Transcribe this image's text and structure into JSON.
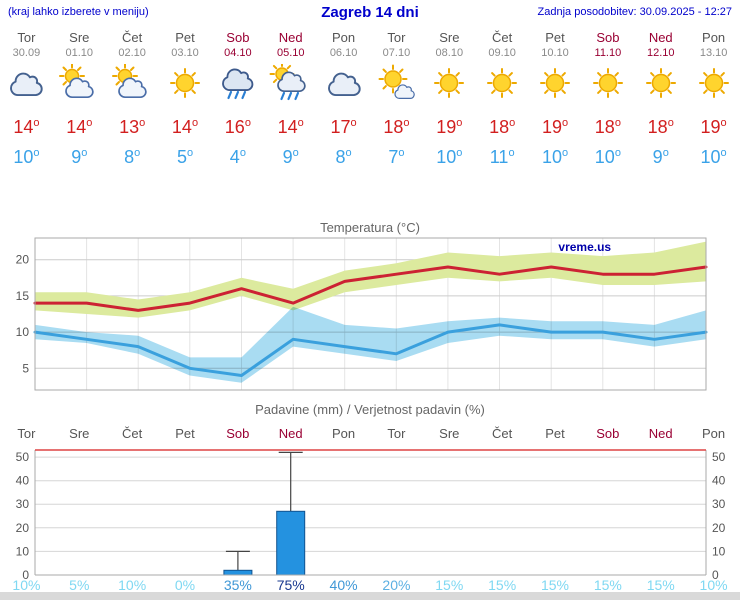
{
  "header": {
    "note": "(kraj lahko izberete v meniju)",
    "title": "Zagreb 14 dni",
    "updated": "Zadnja posodobitev: 30.09.2025 - 12:27"
  },
  "colors": {
    "link_blue": "#0000cc",
    "weekday_gray": "#555555",
    "weekend_red": "#990033",
    "tmax_red": "#d21f1f",
    "tmin_blue": "#3aa2e8",
    "temp_max_band": "#dcea9e",
    "temp_min_band": "#a9dcf2",
    "watermark_blue": "#0000aa",
    "prob_colors": {
      "high": "#18388f",
      "medium": "#3f97d6",
      "medium_low": "#5cb0e2",
      "low": "#7fd8f2"
    }
  },
  "days": [
    {
      "name": "Tor",
      "date": "30.09",
      "weekend": false,
      "icon": "cloudy",
      "tmax": 14,
      "tmin": 10
    },
    {
      "name": "Sre",
      "date": "01.10",
      "weekend": false,
      "icon": "partly-cloudy",
      "tmax": 14,
      "tmin": 9
    },
    {
      "name": "Čet",
      "date": "02.10",
      "weekend": false,
      "icon": "partly-cloudy",
      "tmax": 13,
      "tmin": 8
    },
    {
      "name": "Pet",
      "date": "03.10",
      "weekend": false,
      "icon": "sunny",
      "tmax": 14,
      "tmin": 5
    },
    {
      "name": "Sob",
      "date": "04.10",
      "weekend": true,
      "icon": "rain",
      "tmax": 16,
      "tmin": 4
    },
    {
      "name": "Ned",
      "date": "05.10",
      "weekend": true,
      "icon": "rain-sun",
      "tmax": 14,
      "tmin": 9
    },
    {
      "name": "Pon",
      "date": "06.10",
      "weekend": false,
      "icon": "cloudy",
      "tmax": 17,
      "tmin": 8
    },
    {
      "name": "Tor",
      "date": "07.10",
      "weekend": false,
      "icon": "mostly-sunny",
      "tmax": 18,
      "tmin": 7
    },
    {
      "name": "Sre",
      "date": "08.10",
      "weekend": false,
      "icon": "sunny",
      "tmax": 19,
      "tmin": 10
    },
    {
      "name": "Čet",
      "date": "09.10",
      "weekend": false,
      "icon": "sunny",
      "tmax": 18,
      "tmin": 11
    },
    {
      "name": "Pet",
      "date": "10.10",
      "weekend": false,
      "icon": "sunny",
      "tmax": 19,
      "tmin": 10
    },
    {
      "name": "Sob",
      "date": "11.10",
      "weekend": true,
      "icon": "sunny",
      "tmax": 18,
      "tmin": 10
    },
    {
      "name": "Ned",
      "date": "12.10",
      "weekend": true,
      "icon": "sunny",
      "tmax": 18,
      "tmin": 9
    },
    {
      "name": "Pon",
      "date": "13.10",
      "weekend": false,
      "icon": "sunny",
      "tmax": 19,
      "tmin": 10
    }
  ],
  "chart_data": [
    {
      "type": "line",
      "title": "Temperatura (°C)",
      "watermark": "vreme.us",
      "ylim": [
        2,
        23
      ],
      "yticks": [
        5,
        10,
        15,
        20
      ],
      "categories": [
        "Tor 30.09",
        "Sre 01.10",
        "Čet 02.10",
        "Pet 03.10",
        "Sob 04.10",
        "Ned 05.10",
        "Pon 06.10",
        "Tor 07.10",
        "Sre 08.10",
        "Čet 09.10",
        "Pet 10.10",
        "Sob 11.10",
        "Ned 12.10",
        "Pon 13.10"
      ],
      "series": [
        {
          "name": "tmax",
          "color": "#cc2233",
          "values": [
            14,
            14,
            13,
            14,
            16,
            14,
            17,
            18,
            19,
            18,
            19,
            18,
            18,
            19
          ]
        },
        {
          "name": "tmin",
          "color": "#3aa0dd",
          "values": [
            10,
            9,
            8,
            5,
            4,
            9,
            8,
            7,
            10,
            11,
            10,
            10,
            9,
            10
          ]
        },
        {
          "name": "max_range_high",
          "values": [
            15.5,
            15.5,
            14.5,
            15.5,
            17.5,
            16,
            18.5,
            19.5,
            21,
            20.5,
            21,
            20.5,
            21,
            22.5
          ]
        },
        {
          "name": "max_range_low",
          "values": [
            13,
            12.5,
            12,
            13,
            15,
            13,
            15.5,
            16.5,
            17.5,
            17,
            17.5,
            16.5,
            16.5,
            17
          ]
        },
        {
          "name": "min_range_high",
          "values": [
            11,
            10,
            9.5,
            6.5,
            6.5,
            13.5,
            11,
            10.5,
            11.5,
            12,
            11.5,
            11.5,
            11,
            13
          ]
        },
        {
          "name": "min_range_low",
          "values": [
            9,
            8.5,
            7,
            4,
            3,
            8,
            7,
            6,
            8.5,
            9.5,
            9,
            9,
            8,
            9
          ]
        }
      ]
    },
    {
      "type": "bar",
      "title": "Padavine (mm) / Verjetnost padavin (%)",
      "categories": [
        "Tor",
        "Sre",
        "Čet",
        "Pet",
        "Sob",
        "Ned",
        "Pon",
        "Tor",
        "Sre",
        "Čet",
        "Pet",
        "Sob",
        "Ned",
        "Pon"
      ],
      "values": [
        0,
        0,
        0,
        0,
        2,
        27,
        0,
        0,
        0,
        0,
        0,
        0,
        0,
        0
      ],
      "range_high": [
        0,
        0,
        0,
        0,
        10,
        52,
        0,
        0,
        0,
        0,
        0,
        0,
        0,
        0
      ],
      "probabilities": [
        10,
        5,
        10,
        0,
        35,
        75,
        40,
        20,
        15,
        15,
        15,
        15,
        15,
        10
      ],
      "ylim": [
        0,
        53
      ],
      "yticks": [
        0,
        10,
        20,
        30,
        40,
        50
      ],
      "bar_color": "#2492e0"
    }
  ]
}
